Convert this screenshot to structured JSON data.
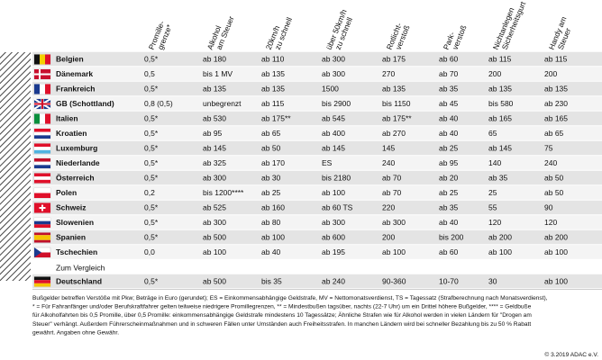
{
  "table": {
    "headers": [
      [
        "Promille-",
        "grenze*"
      ],
      [
        "Alkohol",
        "am Steuer"
      ],
      [
        "20km/h",
        "zu schnell"
      ],
      [
        "über 50km/h",
        "zu schnell"
      ],
      [
        "Rotlicht-",
        "verstoß"
      ],
      [
        "Park-",
        "verstoß"
      ],
      [
        "Nichtanlegen",
        "Sicherheitsgurt"
      ],
      [
        "Handy am",
        "Steuer"
      ]
    ],
    "rows": [
      [
        "Belgien",
        "0,5*",
        "ab 180",
        "ab 110",
        "ab 300",
        "ab 175",
        "ab 60",
        "ab 115",
        "ab 115"
      ],
      [
        "Dänemark",
        "0,5",
        "bis 1 MV",
        "ab 135",
        "ab 300",
        "270",
        "ab 70",
        "200",
        "200"
      ],
      [
        "Frankreich",
        "0,5*",
        "ab 135",
        "ab 135",
        "1500",
        "ab 135",
        "ab 35",
        "ab 135",
        "ab 135"
      ],
      [
        "GB (Schottland)",
        "0,8 (0,5)",
        "unbegrenzt",
        "ab 115",
        "bis 2900",
        "bis 1150",
        "ab 45",
        "bis 580",
        "ab 230"
      ],
      [
        "Italien",
        "0,5*",
        "ab 530",
        "ab 175**",
        "ab 545",
        "ab 175**",
        "ab 40",
        "ab 165",
        "ab 165"
      ],
      [
        "Kroatien",
        "0,5*",
        "ab 95",
        "ab 65",
        "ab 400",
        "ab 270",
        "ab 40",
        "65",
        "ab 65"
      ],
      [
        "Luxemburg",
        "0,5*",
        "ab 145",
        "ab 50",
        "ab 145",
        "145",
        "ab 25",
        "ab 145",
        "75"
      ],
      [
        "Niederlande",
        "0,5*",
        "ab 325",
        "ab 170",
        "ES",
        "240",
        "ab 95",
        "140",
        "240"
      ],
      [
        "Österreich",
        "0,5*",
        "ab 300",
        "ab 30",
        "bis 2180",
        "ab 70",
        "ab 20",
        "ab 35",
        "ab 50"
      ],
      [
        "Polen",
        "0,2",
        "bis 1200****",
        "ab 25",
        "ab 100",
        "ab 70",
        "ab 25",
        "25",
        "ab 50"
      ],
      [
        "Schweiz",
        "0,5*",
        "ab 525",
        "ab 160",
        "ab 60 TS",
        "220",
        "ab 35",
        "55",
        "90"
      ],
      [
        "Slowenien",
        "0,5*",
        "ab 300",
        "ab 80",
        "ab 300",
        "ab 300",
        "ab 40",
        "120",
        "120"
      ],
      [
        "Spanien",
        "0,5*",
        "ab 500",
        "ab 100",
        "ab 600",
        "200",
        "bis 200",
        "ab 200",
        "ab 200"
      ],
      [
        "Tschechien",
        "0,0",
        "ab 100",
        "ab 40",
        "ab 195",
        "ab 100",
        "ab 60",
        "ab 100",
        "ab 100"
      ]
    ],
    "comparison_label": "Zum Vergleich",
    "comparison_row": [
      "Deutschland",
      "0,5*",
      "ab 500",
      "bis 35",
      "ab 240",
      "90-360",
      "10-70",
      "30",
      "ab 100"
    ]
  },
  "footnote": [
    "Bußgelder betreffen Verstöße mit Pkw; Beträge in Euro (gerundet); ES = Einkommensabhängige Geldstrafe, MV = Nettomonatsverdienst, TS = Tagessatz (Strafberechnung nach Monatsverdienst),",
    "* = Für Fahranfänger und/oder Berufskraftfahrer gelten teilweise niedrigere Promillegrenzen, ** = Mindestbußen tagsüber, nachts (22-7 Uhr) um ein Drittel höhere Bußgelder, **** = Geldbuße",
    "für Alkoholfahrten bis 0,5 Promille, über 0,5 Promille: einkommensabhängige Geldstrafe mindestens 10 Tagessätze; Ähnliche Strafen wie für Alkohol werden in vielen Ländern für \"Drogen am",
    "Steuer\" verhängt. Außerdem Führerscheinmaßnahmen und in schweren Fällen unter Umständen auch Freiheitsstrafen. In manchen Ländern wird bei schneller Bezahlung bis zu 50 % Rabatt",
    "gewährt. Angaben ohne Gewähr."
  ],
  "copyright": "© 3.2019 ADAC e.V."
}
